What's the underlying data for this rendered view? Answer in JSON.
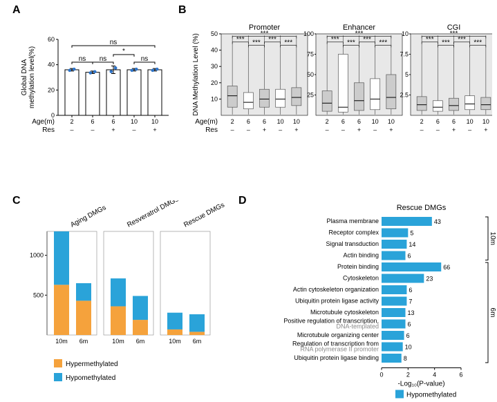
{
  "panels": {
    "A": "A",
    "B": "B",
    "C": "C",
    "D": "D"
  },
  "A": {
    "ylabel": "Global DNA\nmethylation level(%)",
    "ylim": [
      0,
      60
    ],
    "ytick_step": 20,
    "categories": [
      "2",
      "6",
      "6",
      "10",
      "10"
    ],
    "row_labels": {
      "age": "Age(m)",
      "res": "Res"
    },
    "res_row": [
      "–",
      "–",
      "+",
      "–",
      "+"
    ],
    "values": [
      36,
      34,
      36,
      36,
      36
    ],
    "err": [
      1,
      1,
      3,
      1,
      1
    ],
    "bar_fill": "#ffffff",
    "bar_stroke": "#000000",
    "point_color": "#2e74c9",
    "sig": [
      {
        "i": 0,
        "j": 1,
        "label": "ns",
        "h": 42
      },
      {
        "i": 1,
        "j": 2,
        "label": "ns",
        "h": 42
      },
      {
        "i": 3,
        "j": 4,
        "label": "ns",
        "h": 42
      },
      {
        "i": 2,
        "j": 3,
        "label": "*",
        "h": 48
      },
      {
        "i": 0,
        "j": 4,
        "label": "ns",
        "h": 55
      }
    ]
  },
  "B": {
    "subplots": [
      {
        "title": "Promoter",
        "ylim": [
          0,
          50
        ],
        "yticks": [
          10,
          20,
          30,
          40,
          50
        ],
        "boxes": [
          {
            "q1": 5,
            "med": 12,
            "q3": 18,
            "fill": "#cccccc"
          },
          {
            "q1": 4,
            "med": 8,
            "q3": 14,
            "fill": "#ffffff"
          },
          {
            "q1": 5,
            "med": 10,
            "q3": 16,
            "fill": "#cccccc"
          },
          {
            "q1": 5,
            "med": 10,
            "q3": 16,
            "fill": "#ffffff"
          },
          {
            "q1": 6,
            "med": 11,
            "q3": 17,
            "fill": "#cccccc"
          }
        ]
      },
      {
        "title": "Enhancer",
        "ylim": [
          0,
          100
        ],
        "yticks": [
          25,
          50,
          75,
          100
        ],
        "boxes": [
          {
            "q1": 5,
            "med": 15,
            "q3": 30,
            "fill": "#cccccc"
          },
          {
            "q1": 4,
            "med": 10,
            "q3": 75,
            "fill": "#ffffff"
          },
          {
            "q1": 6,
            "med": 18,
            "q3": 40,
            "fill": "#cccccc"
          },
          {
            "q1": 7,
            "med": 20,
            "q3": 45,
            "fill": "#ffffff"
          },
          {
            "q1": 8,
            "med": 22,
            "q3": 50,
            "fill": "#cccccc"
          }
        ]
      },
      {
        "title": "CGI",
        "ylim": [
          0,
          10
        ],
        "yticks": [
          2.5,
          5.0,
          7.5,
          10.0
        ],
        "boxes": [
          {
            "q1": 0.6,
            "med": 1.3,
            "q3": 2.3,
            "fill": "#cccccc"
          },
          {
            "q1": 0.5,
            "med": 1.0,
            "q3": 1.8,
            "fill": "#ffffff"
          },
          {
            "q1": 0.6,
            "med": 1.2,
            "q3": 2.1,
            "fill": "#cccccc"
          },
          {
            "q1": 0.7,
            "med": 1.4,
            "q3": 2.4,
            "fill": "#ffffff"
          },
          {
            "q1": 0.7,
            "med": 1.3,
            "q3": 2.2,
            "fill": "#cccccc"
          }
        ]
      }
    ],
    "categories": [
      "2",
      "6",
      "6",
      "10",
      "10"
    ],
    "res_row": [
      "–",
      "–",
      "+",
      "–",
      "+"
    ],
    "row_labels": {
      "age": "Age(m)",
      "res": "Res"
    },
    "ylabel": "DNA Methylation Level (%)",
    "sig": [
      {
        "i": 0,
        "j": 1,
        "h": 0.9
      },
      {
        "i": 1,
        "j": 2,
        "h": 0.86
      },
      {
        "i": 2,
        "j": 3,
        "h": 0.9
      },
      {
        "i": 3,
        "j": 4,
        "h": 0.86
      },
      {
        "i": 0,
        "j": 4,
        "h": 0.97
      }
    ],
    "sig_label": "***",
    "shade": "#e8e8e8",
    "stroke": "#555555"
  },
  "C": {
    "groups": [
      "Aging DMGs",
      "Resveratrol DMGs",
      "Rescue DMGs"
    ],
    "cats": [
      "10m",
      "6m"
    ],
    "ylim": [
      0,
      1300
    ],
    "yticks": [
      500,
      1000
    ],
    "colors": {
      "hyper": "#f5a23c",
      "hypo": "#2aa3d9"
    },
    "data": [
      {
        "hyper": 630,
        "hypo": 670
      },
      {
        "hyper": 430,
        "hypo": 220
      },
      {
        "hyper": 360,
        "hypo": 350
      },
      {
        "hyper": 190,
        "hypo": 300
      },
      {
        "hyper": 70,
        "hypo": 210
      },
      {
        "hyper": 40,
        "hypo": 220
      }
    ],
    "legend": {
      "hyper": "Hypermethylated",
      "hypo": "Hypomethylated"
    }
  },
  "D": {
    "title": "Rescue DMGs",
    "xlabel": "-Log₁₀(P-value)",
    "xlim": [
      0,
      6
    ],
    "xticks": [
      0,
      2,
      4,
      6
    ],
    "color": "#2aa3d9",
    "legend": "Hypomethylated",
    "items": [
      {
        "label": "Plasma membrane",
        "val": 3.8,
        "n": 43,
        "grp": "10m"
      },
      {
        "label": "Receptor complex",
        "val": 2.0,
        "n": 5,
        "grp": "10m"
      },
      {
        "label": "Signal transduction",
        "val": 1.9,
        "n": 14,
        "grp": "10m"
      },
      {
        "label": "Actin binding",
        "val": 1.8,
        "n": 6,
        "grp": "10m"
      },
      {
        "label": "Protein binding",
        "val": 4.5,
        "n": 66,
        "grp": "6m"
      },
      {
        "label": "Cytoskeleton",
        "val": 3.2,
        "n": 23,
        "grp": "6m"
      },
      {
        "label": "Actin cytoskeleton organization",
        "val": 1.9,
        "n": 6,
        "grp": "6m"
      },
      {
        "label": "Ubiquitin protein ligase activity",
        "val": 1.9,
        "n": 7,
        "grp": "6m"
      },
      {
        "label": "Microtubule cytoskeleton",
        "val": 1.8,
        "n": 13,
        "grp": "6m"
      },
      {
        "label": "Positive regulation of transcription,\nDNA-templated",
        "val": 1.8,
        "n": 6,
        "grp": "6m"
      },
      {
        "label": "Microtubule organizing center",
        "val": 1.7,
        "n": 6,
        "grp": "6m"
      },
      {
        "label": "Regulation of transcription from\nRNA polymerase II promoter",
        "val": 1.6,
        "n": 10,
        "grp": "6m"
      },
      {
        "label": "Ubiquitin protein ligase binding",
        "val": 1.5,
        "n": 8,
        "grp": "6m"
      }
    ]
  }
}
